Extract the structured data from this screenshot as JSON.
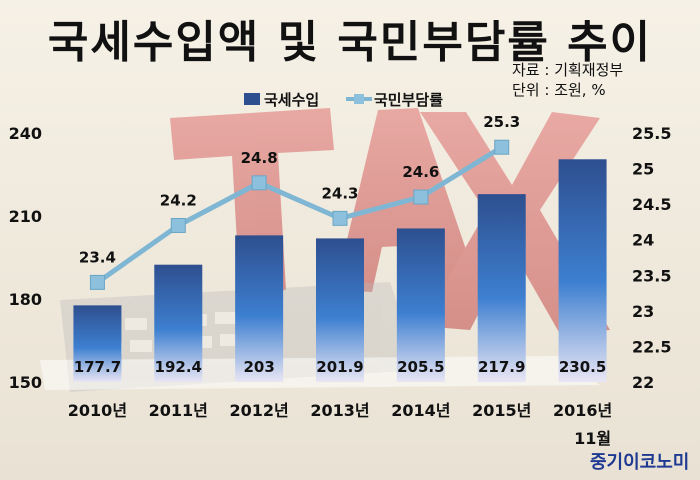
{
  "title": "국세수입액 및 국민부담률 추이",
  "source": [
    "자료 : 기획재정부",
    "단위 : 조원, %"
  ],
  "brand": "중기이코노미",
  "colors": {
    "bar_top": "#2e4f8f",
    "bar_mid": "#3d7fd0",
    "bar_bottom": "#e9e6f4",
    "line": "#7fb6d3",
    "marker": "#8cc0dc"
  },
  "chart_data": {
    "type": "bar",
    "categories": [
      "2010년",
      "2011년",
      "2012년",
      "2013년",
      "2014년",
      "2015년",
      "2016년"
    ],
    "category_sublabels": [
      "",
      "",
      "",
      "",
      "",
      "",
      "11월"
    ],
    "series": [
      {
        "name": "국세수입",
        "type": "bar",
        "axis": "left",
        "values": [
          177.7,
          192.4,
          203,
          201.9,
          205.5,
          217.9,
          230.5
        ],
        "labels": [
          "177.7",
          "192.4",
          "203",
          "201.9",
          "205.5",
          "217.9",
          "230.5"
        ]
      },
      {
        "name": "국민부담률",
        "type": "line",
        "axis": "right",
        "values": [
          23.4,
          24.2,
          24.8,
          24.3,
          24.6,
          25.3,
          null
        ],
        "labels": [
          "23.4",
          "24.2",
          "24.8",
          "24.3",
          "24.6",
          "25.3",
          ""
        ]
      }
    ],
    "y_left": {
      "range": [
        150,
        240
      ],
      "ticks": [
        "150",
        "180",
        "210",
        "240"
      ]
    },
    "y_right": {
      "range": [
        22,
        25.5
      ],
      "ticks": [
        "22",
        "22.5",
        "23",
        "23.5",
        "24",
        "24.5",
        "25",
        "25.5"
      ]
    },
    "legend_position": "top",
    "grid": false
  }
}
